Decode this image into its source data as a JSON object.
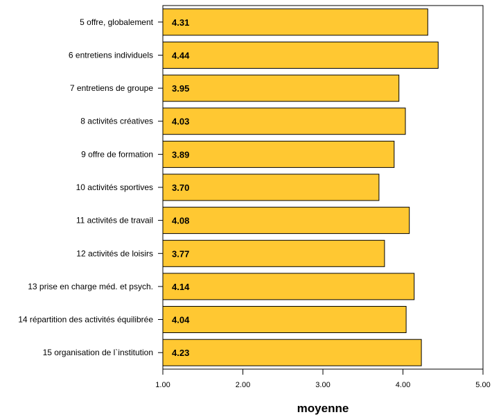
{
  "chart_data": {
    "type": "bar",
    "orientation": "horizontal",
    "categories": [
      "5 offre, globalement",
      "6 entretiens individuels",
      "7 entretiens de groupe",
      "8 activités créatives",
      "9 offre de formation",
      "10 activités sportives",
      "11 activités de travail",
      "12 activités de loisirs",
      "13 prise en charge méd. et psych.",
      "14 répartition des activités équilibrée",
      "15 organisation de l`institution"
    ],
    "values": [
      4.31,
      4.44,
      3.95,
      4.03,
      3.89,
      3.7,
      4.08,
      3.77,
      4.14,
      4.04,
      4.23
    ],
    "value_labels": [
      "4.31",
      "4.44",
      "3.95",
      "4.03",
      "3.89",
      "3.70",
      "4.08",
      "3.77",
      "4.14",
      "4.04",
      "4.23"
    ],
    "title": "",
    "xlabel": "moyenne",
    "ylabel": "",
    "xlim": [
      1.0,
      5.0
    ],
    "xticks": [
      1.0,
      2.0,
      3.0,
      4.0,
      5.0
    ],
    "xtick_labels": [
      "1.00",
      "2.00",
      "3.00",
      "4.00",
      "5.00"
    ],
    "grid": false,
    "legend": "none",
    "bar_color": "#FFC832",
    "bar_edge_color": "#000000"
  }
}
